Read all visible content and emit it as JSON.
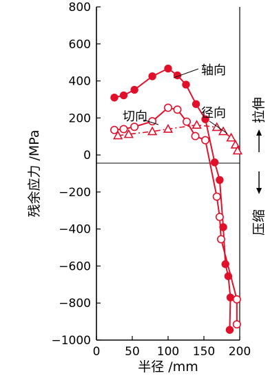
{
  "chart_data": {
    "type": "line",
    "xlabel": "半径 /mm",
    "ylabel": "残余应力 /MPa",
    "xlim": [
      0,
      200
    ],
    "ylim": [
      -1000,
      800
    ],
    "x_ticks": [
      {
        "value": 0,
        "label": "0"
      },
      {
        "value": 50,
        "label": "50"
      },
      {
        "value": 100,
        "label": "100"
      },
      {
        "value": 150,
        "label": "150"
      },
      {
        "value": 200,
        "label": "200"
      }
    ],
    "y_ticks": [
      {
        "value": 800,
        "label": "800"
      },
      {
        "value": 600,
        "label": "600"
      },
      {
        "value": 400,
        "label": "400"
      },
      {
        "value": 200,
        "label": "200"
      },
      {
        "value": 0,
        "label": "0"
      },
      {
        "value": -200,
        "label": "−200"
      },
      {
        "value": -400,
        "label": "−400"
      },
      {
        "value": -600,
        "label": "−600"
      },
      {
        "value": -800,
        "label": "−800"
      },
      {
        "value": -1000,
        "label": "−1000"
      }
    ],
    "right_annotations": {
      "tension": "拉伸",
      "compression": "压缩"
    },
    "series": [
      {
        "name": "轴向",
        "marker": "filled-circle",
        "line": "solid",
        "color": "#e0102a",
        "points": [
          {
            "x": 25,
            "y": 310
          },
          {
            "x": 38,
            "y": 322
          },
          {
            "x": 53,
            "y": 352
          },
          {
            "x": 78,
            "y": 425
          },
          {
            "x": 100,
            "y": 467
          },
          {
            "x": 113,
            "y": 430
          },
          {
            "x": 125,
            "y": 380
          },
          {
            "x": 139,
            "y": 275
          },
          {
            "x": 152,
            "y": 193
          },
          {
            "x": 165,
            "y": -40
          },
          {
            "x": 172,
            "y": -135
          },
          {
            "x": 177,
            "y": -390
          },
          {
            "x": 180,
            "y": -590
          },
          {
            "x": 184,
            "y": -655
          },
          {
            "x": 187,
            "y": -770
          },
          {
            "x": 186,
            "y": -945
          }
        ]
      },
      {
        "name": "切向",
        "marker": "open-circle",
        "line": "solid",
        "color": "#e0102a",
        "points": [
          {
            "x": 25,
            "y": 135
          },
          {
            "x": 38,
            "y": 140
          },
          {
            "x": 53,
            "y": 152
          },
          {
            "x": 78,
            "y": 182
          },
          {
            "x": 100,
            "y": 255
          },
          {
            "x": 113,
            "y": 245
          },
          {
            "x": 126,
            "y": 180
          },
          {
            "x": 138,
            "y": 102
          },
          {
            "x": 152,
            "y": 80
          },
          {
            "x": 168,
            "y": -225
          },
          {
            "x": 172,
            "y": -335
          },
          {
            "x": 174,
            "y": -455
          },
          {
            "x": 196,
            "y": -780
          },
          {
            "x": 196,
            "y": -915
          }
        ]
      },
      {
        "name": "径向",
        "marker": "open-triangle",
        "line": "dash-dot",
        "color": "#e0102a",
        "points": [
          {
            "x": 30,
            "y": 105
          },
          {
            "x": 45,
            "y": 112
          },
          {
            "x": 78,
            "y": 127
          },
          {
            "x": 100,
            "y": 140
          },
          {
            "x": 140,
            "y": 162
          },
          {
            "x": 168,
            "y": 150
          },
          {
            "x": 177,
            "y": 127
          },
          {
            "x": 188,
            "y": 93
          },
          {
            "x": 194,
            "y": 55
          },
          {
            "x": 197,
            "y": 23
          }
        ]
      }
    ],
    "series_labels": {
      "axial": "轴向",
      "tangential": "切向",
      "radial": "径向"
    }
  }
}
